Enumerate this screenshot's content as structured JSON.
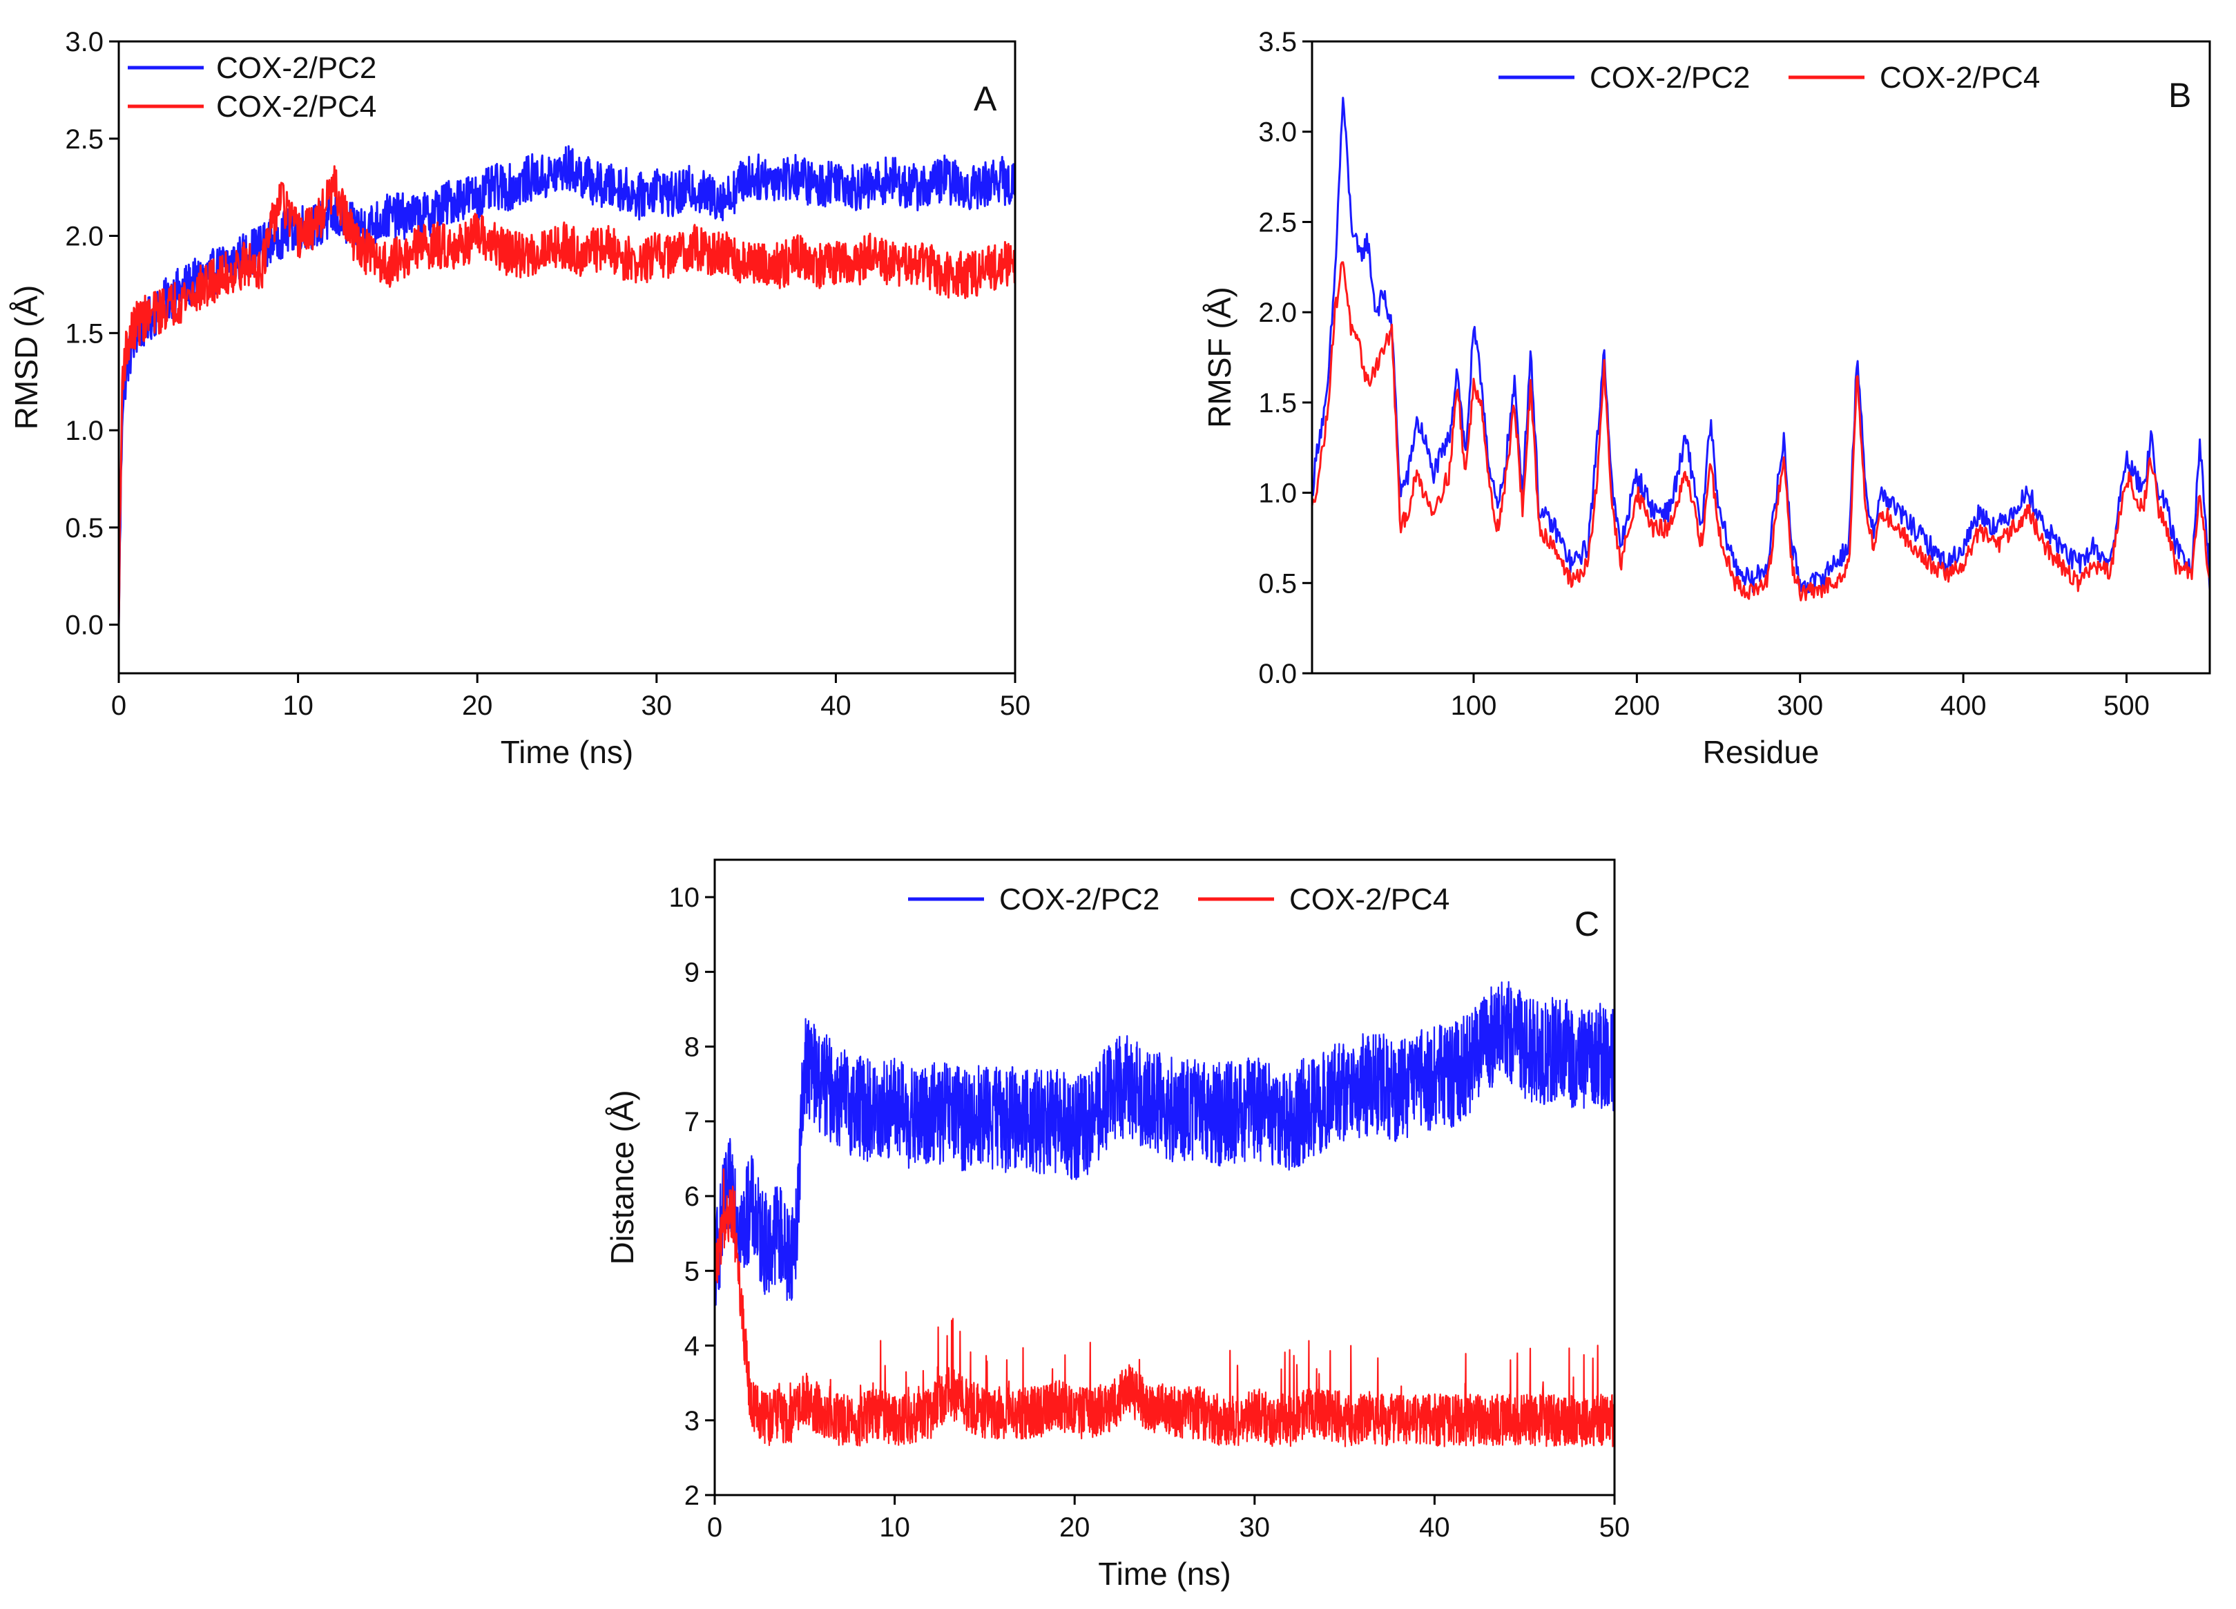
{
  "chart_data": [
    {
      "panel": "A",
      "type": "line",
      "xlabel": "Time (ns)",
      "ylabel": "RMSD (Å)",
      "xlim": [
        0,
        50
      ],
      "ylim": [
        -0.25,
        3.0
      ],
      "xticks": [
        0,
        10,
        20,
        30,
        40,
        50
      ],
      "yticks": [
        0.0,
        0.5,
        1.0,
        1.5,
        2.0,
        2.5,
        3.0
      ],
      "ytick_labels": [
        "0.0",
        "0.5",
        "1.0",
        "1.5",
        "2.0",
        "2.5",
        "3.0"
      ],
      "legend_position": "top-left",
      "grid": false,
      "series": [
        {
          "name": "COX-2/PC2",
          "color": "#1a1aff",
          "x": [
            0,
            0.2,
            0.5,
            1,
            2,
            3,
            4,
            5,
            6,
            7,
            8,
            9,
            10,
            11,
            12,
            13,
            14,
            15,
            16,
            17,
            18,
            19,
            20,
            21,
            22,
            23,
            24,
            25,
            26,
            27,
            28,
            29,
            30,
            31,
            32,
            33,
            34,
            35,
            36,
            37,
            38,
            39,
            40,
            41,
            42,
            43,
            44,
            45,
            46,
            47,
            48,
            49,
            50
          ],
          "y": [
            0.0,
            1.15,
            1.35,
            1.5,
            1.6,
            1.7,
            1.75,
            1.8,
            1.85,
            1.9,
            1.95,
            2.0,
            2.05,
            2.05,
            2.1,
            2.05,
            2.05,
            2.1,
            2.1,
            2.1,
            2.15,
            2.2,
            2.2,
            2.25,
            2.25,
            2.3,
            2.3,
            2.35,
            2.3,
            2.25,
            2.25,
            2.2,
            2.25,
            2.2,
            2.25,
            2.2,
            2.2,
            2.3,
            2.3,
            2.3,
            2.3,
            2.25,
            2.3,
            2.25,
            2.25,
            2.3,
            2.25,
            2.25,
            2.3,
            2.25,
            2.25,
            2.3,
            2.25
          ]
        },
        {
          "name": "COX-2/PC4",
          "color": "#ff1a1a",
          "x": [
            0,
            0.2,
            0.5,
            1,
            2,
            3,
            4,
            5,
            6,
            7,
            8,
            9,
            10,
            11,
            12,
            13,
            14,
            15,
            16,
            17,
            18,
            19,
            20,
            21,
            22,
            23,
            24,
            25,
            26,
            27,
            28,
            29,
            30,
            31,
            32,
            33,
            34,
            35,
            36,
            37,
            38,
            39,
            40,
            41,
            42,
            43,
            44,
            45,
            46,
            47,
            48,
            49,
            50
          ],
          "y": [
            0.0,
            1.3,
            1.45,
            1.55,
            1.6,
            1.65,
            1.7,
            1.75,
            1.8,
            1.85,
            1.85,
            2.2,
            2.0,
            2.05,
            2.25,
            2.0,
            1.9,
            1.85,
            1.9,
            1.95,
            1.95,
            1.95,
            2.0,
            1.95,
            1.9,
            1.9,
            1.95,
            1.95,
            1.9,
            1.95,
            1.9,
            1.85,
            1.9,
            1.9,
            1.95,
            1.9,
            1.9,
            1.85,
            1.85,
            1.85,
            1.9,
            1.85,
            1.85,
            1.85,
            1.9,
            1.85,
            1.85,
            1.85,
            1.8,
            1.8,
            1.8,
            1.85,
            1.85
          ]
        }
      ]
    },
    {
      "panel": "B",
      "type": "line",
      "xlabel": "Residue",
      "ylabel": "RMSF (Å)",
      "xlim": [
        1,
        551
      ],
      "ylim": [
        0.0,
        3.5
      ],
      "xticks": [
        100,
        200,
        300,
        400,
        500
      ],
      "yticks": [
        0.0,
        0.5,
        1.0,
        1.5,
        2.0,
        2.5,
        3.0,
        3.5
      ],
      "ytick_labels": [
        "0.0",
        "0.5",
        "1.0",
        "1.5",
        "2.0",
        "2.5",
        "3.0",
        "3.5"
      ],
      "legend_position": "top-center",
      "grid": false,
      "series": [
        {
          "name": "COX-2/PC2",
          "color": "#1a1aff",
          "x": [
            1,
            5,
            10,
            15,
            20,
            25,
            30,
            35,
            40,
            45,
            50,
            55,
            60,
            65,
            70,
            75,
            80,
            85,
            90,
            95,
            100,
            105,
            110,
            115,
            120,
            125,
            130,
            135,
            140,
            150,
            160,
            170,
            175,
            180,
            185,
            190,
            200,
            210,
            220,
            230,
            240,
            245,
            250,
            260,
            270,
            280,
            290,
            295,
            300,
            310,
            320,
            330,
            335,
            340,
            345,
            350,
            360,
            370,
            380,
            390,
            400,
            410,
            420,
            430,
            440,
            450,
            460,
            470,
            480,
            490,
            500,
            510,
            515,
            520,
            525,
            530,
            540,
            545,
            551
          ],
          "y": [
            1.0,
            1.3,
            1.5,
            2.2,
            3.2,
            2.5,
            2.3,
            2.4,
            2.0,
            2.1,
            1.9,
            1.0,
            1.1,
            1.4,
            1.3,
            1.1,
            1.2,
            1.3,
            1.7,
            1.2,
            1.9,
            1.6,
            1.1,
            0.9,
            1.2,
            1.6,
            1.0,
            1.8,
            0.9,
            0.8,
            0.6,
            0.7,
            1.2,
            1.8,
            1.0,
            0.7,
            1.1,
            0.9,
            0.9,
            1.3,
            0.8,
            1.4,
            0.9,
            0.6,
            0.5,
            0.6,
            1.3,
            0.7,
            0.5,
            0.5,
            0.6,
            0.7,
            1.8,
            1.0,
            0.8,
            1.0,
            0.9,
            0.8,
            0.7,
            0.6,
            0.7,
            0.9,
            0.8,
            0.9,
            1.0,
            0.8,
            0.7,
            0.6,
            0.7,
            0.6,
            1.2,
            1.0,
            1.3,
            1.0,
            0.9,
            0.7,
            0.6,
            1.3,
            0.5
          ]
        },
        {
          "name": "COX-2/PC4",
          "color": "#ff1a1a",
          "x": [
            1,
            5,
            10,
            15,
            20,
            25,
            30,
            35,
            40,
            45,
            50,
            55,
            60,
            65,
            70,
            75,
            80,
            85,
            90,
            95,
            100,
            105,
            110,
            115,
            120,
            125,
            130,
            135,
            140,
            150,
            160,
            170,
            175,
            180,
            185,
            190,
            200,
            210,
            220,
            230,
            240,
            245,
            250,
            260,
            270,
            280,
            290,
            295,
            300,
            310,
            320,
            330,
            335,
            340,
            345,
            350,
            360,
            370,
            380,
            390,
            400,
            410,
            420,
            430,
            440,
            450,
            460,
            470,
            480,
            490,
            500,
            510,
            515,
            520,
            525,
            530,
            540,
            545,
            551
          ],
          "y": [
            0.9,
            1.1,
            1.4,
            2.0,
            2.3,
            1.9,
            1.8,
            1.6,
            1.7,
            1.8,
            1.9,
            0.8,
            0.9,
            1.1,
            1.0,
            0.9,
            1.0,
            1.1,
            1.6,
            1.1,
            1.6,
            1.5,
            1.0,
            0.8,
            1.1,
            1.5,
            0.9,
            1.6,
            0.8,
            0.7,
            0.5,
            0.6,
            1.0,
            1.7,
            0.9,
            0.6,
            1.0,
            0.8,
            0.8,
            1.1,
            0.7,
            1.2,
            0.8,
            0.5,
            0.45,
            0.5,
            1.2,
            0.6,
            0.45,
            0.45,
            0.5,
            0.6,
            1.7,
            0.9,
            0.7,
            0.9,
            0.8,
            0.7,
            0.6,
            0.55,
            0.6,
            0.8,
            0.7,
            0.8,
            0.9,
            0.7,
            0.6,
            0.5,
            0.6,
            0.55,
            1.1,
            0.9,
            1.2,
            0.9,
            0.8,
            0.6,
            0.55,
            1.0,
            0.5
          ]
        }
      ]
    },
    {
      "panel": "C",
      "type": "line",
      "xlabel": "Time (ns)",
      "ylabel": "Distance (Å)",
      "xlim": [
        0,
        50
      ],
      "ylim": [
        2,
        10.5
      ],
      "xticks": [
        0,
        10,
        20,
        30,
        40,
        50
      ],
      "yticks": [
        2,
        3,
        4,
        5,
        6,
        7,
        8,
        9,
        10
      ],
      "ytick_labels": [
        "2",
        "3",
        "4",
        "5",
        "6",
        "7",
        "8",
        "9",
        "10"
      ],
      "legend_position": "top-center",
      "grid": false,
      "series": [
        {
          "name": "COX-2/PC2",
          "color": "#1a1aff",
          "x": [
            0,
            0.5,
            1,
            1.5,
            2,
            2.5,
            3,
            3.5,
            4,
            4.5,
            5,
            6,
            7,
            8,
            9,
            10,
            11,
            12,
            13,
            14,
            15,
            16,
            17,
            18,
            19,
            20,
            21,
            22,
            23,
            24,
            25,
            26,
            27,
            28,
            29,
            30,
            31,
            32,
            33,
            34,
            35,
            36,
            37,
            38,
            39,
            40,
            41,
            42,
            43,
            44,
            45,
            46,
            47,
            48,
            49,
            50
          ],
          "y": [
            5.0,
            5.8,
            6.2,
            5.5,
            5.9,
            5.5,
            5.3,
            5.6,
            5.2,
            5.4,
            7.8,
            7.5,
            7.3,
            7.2,
            7.1,
            7.2,
            7.0,
            7.1,
            7.1,
            7.0,
            7.1,
            7.0,
            7.1,
            7.0,
            7.0,
            6.9,
            7.0,
            7.4,
            7.5,
            7.3,
            7.2,
            7.1,
            7.2,
            7.1,
            7.1,
            7.2,
            7.1,
            7.0,
            7.2,
            7.3,
            7.4,
            7.5,
            7.5,
            7.4,
            7.5,
            7.6,
            7.6,
            7.8,
            8.1,
            8.2,
            8.0,
            7.9,
            8.0,
            7.8,
            7.9,
            7.8
          ]
        },
        {
          "name": "COX-2/PC4",
          "color": "#ff1a1a",
          "x": [
            0,
            0.5,
            1,
            1.5,
            2,
            2.5,
            3,
            3.5,
            4,
            4.5,
            5,
            6,
            7,
            8,
            9,
            10,
            11,
            12,
            13,
            14,
            15,
            16,
            17,
            18,
            19,
            20,
            21,
            22,
            23,
            24,
            25,
            26,
            27,
            28,
            29,
            30,
            31,
            32,
            33,
            34,
            35,
            36,
            37,
            38,
            39,
            40,
            41,
            42,
            43,
            44,
            45,
            46,
            47,
            48,
            49,
            50
          ],
          "y": [
            5.0,
            5.6,
            5.8,
            4.5,
            3.2,
            3.1,
            3.0,
            3.1,
            3.0,
            3.1,
            3.3,
            3.1,
            3.0,
            3.0,
            3.1,
            3.0,
            3.0,
            3.1,
            3.4,
            3.2,
            3.1,
            3.1,
            3.1,
            3.1,
            3.2,
            3.1,
            3.1,
            3.2,
            3.4,
            3.2,
            3.1,
            3.1,
            3.1,
            3.0,
            3.0,
            3.1,
            3.0,
            3.0,
            3.1,
            3.1,
            3.0,
            3.0,
            3.0,
            3.0,
            3.0,
            3.0,
            3.0,
            3.0,
            3.0,
            3.0,
            3.0,
            3.0,
            3.0,
            3.0,
            3.0,
            3.0
          ]
        }
      ]
    }
  ]
}
